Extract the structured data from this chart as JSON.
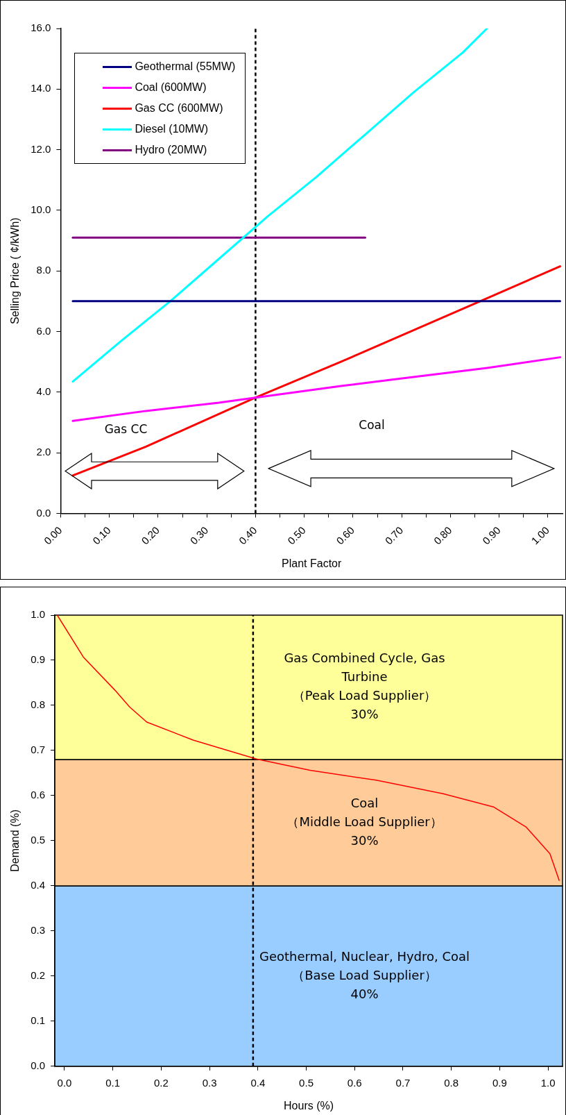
{
  "chart_data": [
    {
      "type": "line",
      "xlabel": "Plant Factor",
      "ylabel": "Selling Price ( ¢/kWh)",
      "legend": "top left",
      "grid": false,
      "xlim": [
        0,
        1.03
      ],
      "xticks": [
        {
          "value": 0,
          "label": "0.00"
        },
        {
          "value": 0.05,
          "label": null
        },
        {
          "value": 0.1,
          "label": "0.10"
        },
        {
          "value": 0.15,
          "label": null
        },
        {
          "value": 0.2,
          "label": "0.20"
        },
        {
          "value": 0.25,
          "label": null
        },
        {
          "value": 0.3,
          "label": "0.30"
        },
        {
          "value": 0.35,
          "label": null
        },
        {
          "value": 0.4,
          "label": "0.40"
        },
        {
          "value": 0.45,
          "label": null
        },
        {
          "value": 0.5,
          "label": "0.50"
        },
        {
          "value": 0.55,
          "label": null
        },
        {
          "value": 0.6,
          "label": "0.60"
        },
        {
          "value": 0.65,
          "label": null
        },
        {
          "value": 0.7,
          "label": "0.70"
        },
        {
          "value": 0.75,
          "label": null
        },
        {
          "value": 0.8,
          "label": "0.80"
        },
        {
          "value": 0.85,
          "label": null
        },
        {
          "value": 0.9,
          "label": "0.90"
        },
        {
          "value": 0.95,
          "label": null
        },
        {
          "value": 1,
          "label": "1.00"
        }
      ],
      "ylim": [
        0,
        16
      ],
      "yticks": [
        {
          "value": 0,
          "label": "0.0"
        },
        {
          "value": 2,
          "label": "2.0"
        },
        {
          "value": 4,
          "label": "4.0"
        },
        {
          "value": 6,
          "label": "6.0"
        },
        {
          "value": 8,
          "label": "8.0"
        },
        {
          "value": 10,
          "label": "10.0"
        },
        {
          "value": 12,
          "label": "12.0"
        },
        {
          "value": 14,
          "label": "14.0"
        },
        {
          "value": 16,
          "label": "16.0"
        }
      ],
      "ref_lines": [
        {
          "axis": "x",
          "value": 0.4,
          "color": "#000000",
          "line_style": "dashed"
        }
      ],
      "annotations": [
        "Gas CC",
        "Coal"
      ],
      "series": [
        {
          "name": "Geothermal (55MW)",
          "color": "#000080",
          "x": [
            0.025,
            1.025
          ],
          "values": [
            7.0,
            7.0
          ]
        },
        {
          "name": "Coal (600MW)",
          "color": "#ff00ff",
          "x": [
            0.025,
            0.175,
            0.325,
            0.4,
            0.575,
            0.675,
            0.875,
            1.025
          ],
          "values": [
            3.05,
            3.38,
            3.65,
            3.82,
            4.2,
            4.4,
            4.8,
            5.15
          ]
        },
        {
          "name": "Gas CC (600MW)",
          "color": "#ff0000",
          "x": [
            0.025,
            0.175,
            0.4,
            0.575,
            0.775,
            0.875,
            1.025
          ],
          "values": [
            1.25,
            2.2,
            3.82,
            5.0,
            6.4,
            7.1,
            8.15
          ]
        },
        {
          "name": "Diesel (10MW)",
          "color": "#00ffff",
          "x": [
            0.025,
            0.125,
            0.225,
            0.325,
            0.425,
            0.525,
            0.625,
            0.725,
            0.825,
            0.875
          ],
          "values": [
            4.35,
            5.7,
            7.0,
            8.4,
            9.8,
            11.1,
            12.5,
            13.9,
            15.2,
            16.0
          ]
        },
        {
          "name": "Hydro (20MW)",
          "color": "#800080",
          "x": [
            0.025,
            0.625
          ],
          "values": [
            9.1,
            9.1
          ]
        }
      ]
    },
    {
      "type": "line",
      "xlabel": "Hours (%)",
      "ylabel": "Demand (%)",
      "grid": false,
      "xlim": [
        -0.02,
        1.03
      ],
      "xticks": [
        {
          "value": 0,
          "label": "0.0"
        },
        {
          "value": 0.1,
          "label": "0.1"
        },
        {
          "value": 0.2,
          "label": "0.2"
        },
        {
          "value": 0.3,
          "label": "0.3"
        },
        {
          "value": 0.4,
          "label": "0.4"
        },
        {
          "value": 0.5,
          "label": "0.5"
        },
        {
          "value": 0.6,
          "label": "0.6"
        },
        {
          "value": 0.7,
          "label": "0.7"
        },
        {
          "value": 0.8,
          "label": "0.8"
        },
        {
          "value": 0.9,
          "label": "0.9"
        },
        {
          "value": 1,
          "label": "1.0"
        }
      ],
      "ylim": [
        0,
        1
      ],
      "yticks": [
        {
          "value": 0,
          "label": "0.0"
        },
        {
          "value": 0.1,
          "label": "0.1"
        },
        {
          "value": 0.2,
          "label": "0.2"
        },
        {
          "value": 0.3,
          "label": "0.3"
        },
        {
          "value": 0.4,
          "label": "0.4"
        },
        {
          "value": 0.5,
          "label": "0.5"
        },
        {
          "value": 0.6,
          "label": "0.6"
        },
        {
          "value": 0.7,
          "label": "0.7"
        },
        {
          "value": 0.8,
          "label": "0.8"
        },
        {
          "value": 0.9,
          "label": "0.9"
        },
        {
          "value": 1,
          "label": "1.0"
        }
      ],
      "bands": [
        {
          "axis": "y",
          "from": 0,
          "to": 0.4,
          "color": "#99ccff",
          "label": "Geothermal, Nuclear, Hydro, Coal\n（Base Load Supplier）\n40%"
        },
        {
          "axis": "y",
          "from": 0.4,
          "to": 0.68,
          "color": "#ffcc99",
          "label": "Coal\n（Middle Load Supplier）\n30%"
        },
        {
          "axis": "y",
          "from": 0.68,
          "to": 1.0,
          "color": "#ffff99",
          "label": "Gas Combined Cycle, Gas\nTurbine\n（Peak Load Supplier）\n30%"
        }
      ],
      "ref_lines": [
        {
          "axis": "x",
          "value": 0.39,
          "color": "#000000",
          "line_style": "dashed"
        }
      ],
      "series": [
        {
          "color": "#ff0000",
          "x": [
            -0.015,
            0.039,
            0.104,
            0.135,
            0.17,
            0.266,
            0.397,
            0.508,
            0.645,
            0.783,
            0.887,
            0.955,
            1.004,
            1.023
          ],
          "values": [
            1.0,
            0.907,
            0.834,
            0.796,
            0.763,
            0.723,
            0.681,
            0.656,
            0.634,
            0.604,
            0.575,
            0.53,
            0.471,
            0.412
          ]
        }
      ]
    }
  ]
}
